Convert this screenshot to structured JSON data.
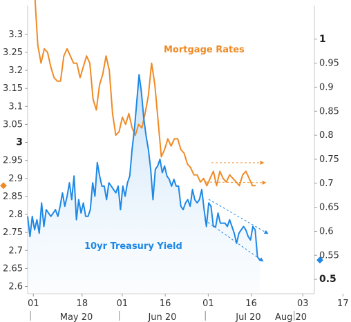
{
  "chart_data": {
    "type": "line",
    "series": [
      {
        "name": "Mortgage Rates",
        "color": "#f08a24",
        "axis": "left",
        "values": [
          3.42,
          3.27,
          3.22,
          3.26,
          3.25,
          3.21,
          3.18,
          3.17,
          3.17,
          3.24,
          3.26,
          3.24,
          3.22,
          3.22,
          3.18,
          3.21,
          3.24,
          3.22,
          3.12,
          3.09,
          3.16,
          3.19,
          3.24,
          3.2,
          3.08,
          3.02,
          3.03,
          3.07,
          3.05,
          3.08,
          3.04,
          3.02,
          3.05,
          3.04,
          3.08,
          3.13,
          3.22,
          3.16,
          3.06,
          2.96,
          2.98,
          3.01,
          2.99,
          3.01,
          3.01,
          2.98,
          2.97,
          2.94,
          2.93,
          2.91,
          2.91,
          2.89,
          2.9,
          2.88,
          2.9,
          2.92,
          2.88,
          2.92,
          2.9,
          2.89,
          2.91,
          2.9,
          2.89,
          2.88,
          2.91,
          2.92,
          2.9,
          2.88,
          2.88
        ]
      },
      {
        "name": "10yr Treasury Yield",
        "color": "#1e88e5",
        "axis": "right",
        "values": [
          0.631,
          0.589,
          0.631,
          0.603,
          0.624,
          0.596,
          0.659,
          0.61,
          0.645,
          0.638,
          0.631,
          0.638,
          0.645,
          0.631,
          0.652,
          0.68,
          0.652,
          0.673,
          0.701,
          0.666,
          0.715,
          0.624,
          0.666,
          0.638,
          0.659,
          0.631,
          0.631,
          0.645,
          0.701,
          0.673,
          0.743,
          0.715,
          0.694,
          0.694,
          0.666,
          0.701,
          0.694,
          0.687,
          0.68,
          0.694,
          0.645,
          0.694,
          0.673,
          0.701,
          0.715,
          0.771,
          0.813,
          0.869,
          0.926,
          0.891,
          0.836,
          0.799,
          0.771,
          0.729,
          0.666,
          0.729,
          0.736,
          0.75,
          0.722,
          0.736,
          0.715,
          0.708,
          0.694,
          0.708,
          0.694,
          0.694,
          0.652,
          0.645,
          0.659,
          0.666,
          0.652,
          0.687,
          0.666,
          0.659,
          0.666,
          0.687,
          0.645,
          0.61,
          0.659,
          0.652,
          0.61,
          0.61,
          0.638,
          0.617,
          0.617,
          0.617,
          0.61,
          0.624,
          0.61,
          0.596,
          0.575,
          0.596,
          0.603,
          0.61,
          0.603,
          0.589,
          0.582,
          0.61,
          0.603,
          0.547,
          0.54
        ]
      }
    ],
    "x": {
      "tick_labels": [
        "01",
        "18",
        "01",
        "16",
        "01",
        "16",
        "03",
        "17"
      ],
      "month_labels": [
        "May 20",
        "Jun 20",
        "Jul 20",
        "Aug 20"
      ]
    },
    "y_left": {
      "ylim": [
        2.58,
        3.38
      ],
      "ticks": [
        2.6,
        2.65,
        2.7,
        2.75,
        2.8,
        2.85,
        2.9,
        2.95,
        3,
        3.05,
        3.1,
        3.15,
        3.2,
        3.25,
        3.3
      ],
      "tick_labels": [
        "2.6",
        "2.65",
        "2.7",
        "2.75",
        "2.8",
        "2.85",
        "2.9",
        "2.95",
        "3",
        "3.05",
        "3.1",
        "3.15",
        "3.2",
        "3.25",
        "3.3"
      ],
      "bold_tick_labels": [
        "3"
      ]
    },
    "y_right": {
      "ylim": [
        0.47,
        1.07
      ],
      "ticks": [
        0.5,
        0.55,
        0.6,
        0.65,
        0.7,
        0.75,
        0.8,
        0.85,
        0.9,
        0.95,
        1
      ],
      "tick_labels": [
        "0.5",
        "0.55",
        "0.6",
        "0.65",
        "0.7",
        "0.75",
        "0.8",
        "0.85",
        "0.9",
        "0.95",
        "1"
      ],
      "bold_tick_labels": [
        "0.5",
        "1"
      ]
    },
    "annotations": {
      "mortgage_label": "Mortgage Rates",
      "treasury_label": "10yr Treasury Yield",
      "mortgage_marker_value": 2.88,
      "treasury_marker_value": 0.54
    },
    "grid": false,
    "legend": "none"
  }
}
